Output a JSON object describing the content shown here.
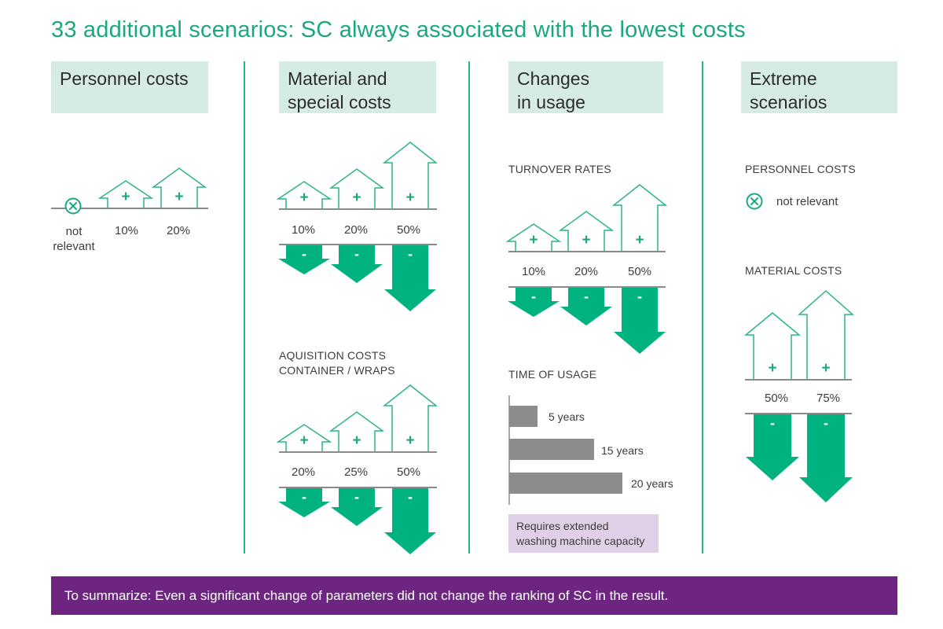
{
  "title": "33 additional scenarios: SC always associated with the lowest costs",
  "columns": {
    "personnel": {
      "heading_line1": "Personnel costs",
      "not_relevant_line1": "not",
      "not_relevant_line2": "relevant",
      "increases": [
        "10%",
        "20%"
      ]
    },
    "material": {
      "heading_line1": "Material and",
      "heading_line2": "special costs",
      "group1": {
        "increases": [
          "10%",
          "20%",
          "50%"
        ]
      },
      "group2": {
        "label_line1": "AQUISITION COSTS",
        "label_line2": "CONTAINER / WRAPS",
        "increases": [
          "20%",
          "25%",
          "50%"
        ]
      }
    },
    "usage": {
      "heading_line1": "Changes",
      "heading_line2": "in usage",
      "turnover_label": "TURNOVER RATES",
      "turnover_increases": [
        "10%",
        "20%",
        "50%"
      ],
      "time_label": "TIME OF USAGE",
      "time_bars": [
        {
          "label": "5 years",
          "years": 5
        },
        {
          "label": "15 years",
          "years": 15
        },
        {
          "label": "20 years",
          "years": 20
        }
      ],
      "note": "Requires extended washing machine capacity"
    },
    "extreme": {
      "heading_line1": "Extreme",
      "heading_line2": "scenarios",
      "personnel_label": "PERSONNEL COSTS",
      "personnel_value": "not relevant",
      "material_label": "MATERIAL COSTS",
      "increases": [
        "50%",
        "75%"
      ]
    }
  },
  "symbols": {
    "plus": "+",
    "minus": "-"
  },
  "summary": "To summarize: Even a significant change of parameters did not change the ranking of SC in the result.",
  "colors": {
    "accent": "#1aa97c",
    "arrow_down_fill": "#00b280",
    "arrow_up_stroke": "#2db38a",
    "header_box": "#d6ebe5",
    "baseline": "#8a8a8a",
    "bar": "#8c8c8c",
    "note_box": "#dfd0e7",
    "summary_bar": "#6e2582"
  }
}
